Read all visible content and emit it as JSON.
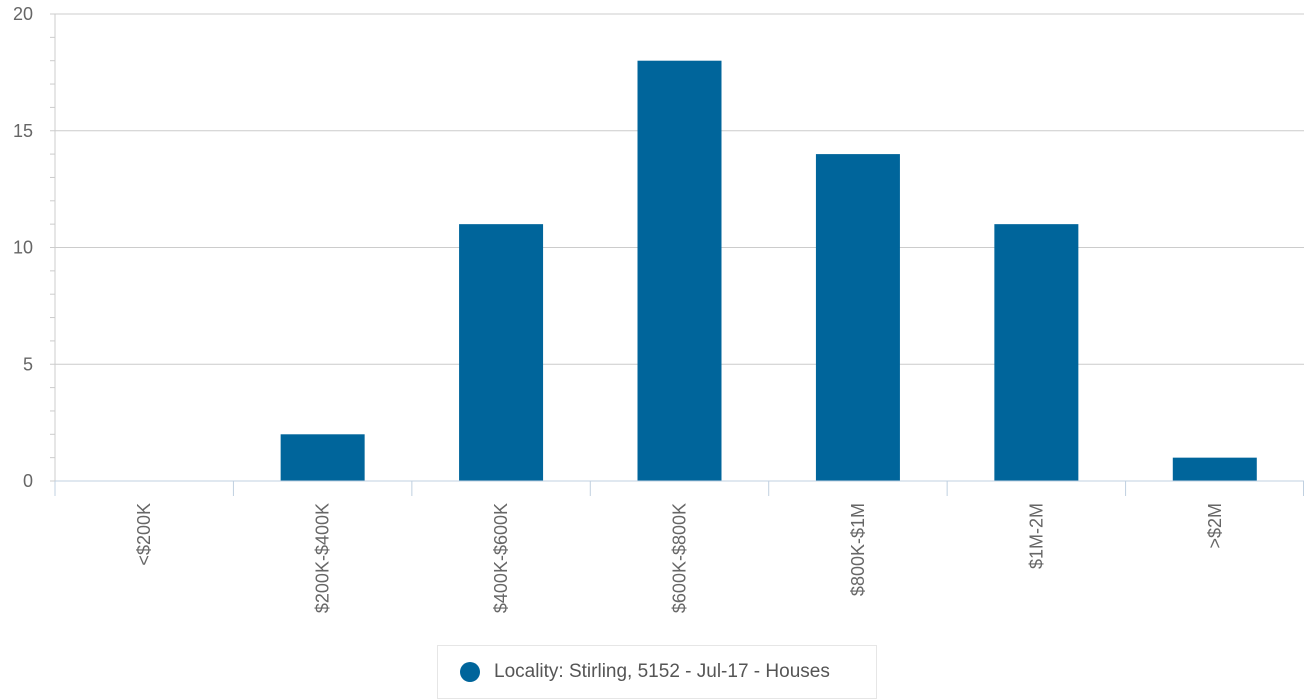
{
  "chart_data": {
    "type": "bar",
    "categories": [
      "<$200K",
      "$200K-$400K",
      "$400K-$600K",
      "$600K-$800K",
      "$800K-$1M",
      "$1M-2M",
      ">$2M"
    ],
    "series": [
      {
        "name": "Locality: Stirling, 5152 - Jul-17 - Houses",
        "values": [
          0,
          2,
          11,
          18,
          14,
          11,
          1
        ],
        "color": "#00659b"
      }
    ],
    "ylim": [
      0,
      20
    ],
    "yticks": [
      0,
      5,
      10,
      15,
      20
    ],
    "grid": true,
    "legend": "bottom-center"
  }
}
